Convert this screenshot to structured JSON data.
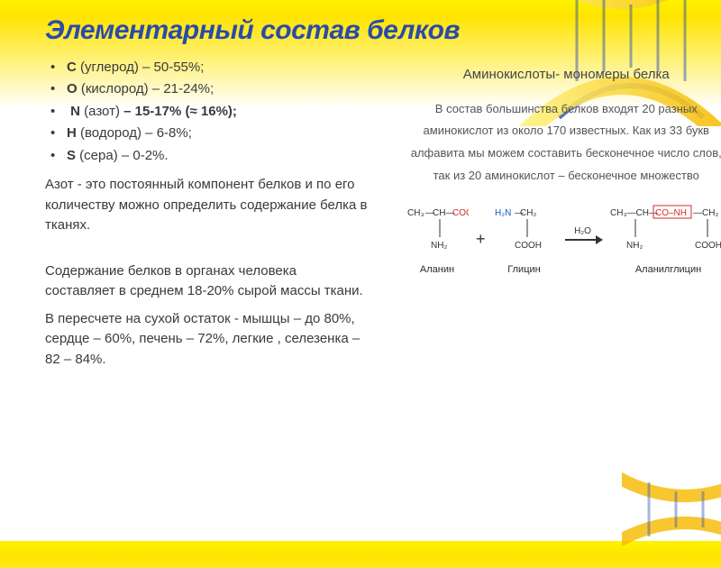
{
  "title": "Элементарный состав белков",
  "elements": [
    {
      "sym": "С",
      "name": "(углерод)",
      "range": "– 50-55%;"
    },
    {
      "sym": "О",
      "name": "(кислород)",
      "range": "– 21-24%;"
    },
    {
      "sym": "N",
      "name": "(азот)",
      "range": "– 15-17% (≈ 16%);",
      "bold_range": true,
      "lead_space": true
    },
    {
      "sym": "Н",
      "name": "(водород)",
      "range": "– 6-8%;"
    },
    {
      "sym": "S",
      "name": "(сера)",
      "range": "– 0-2%.",
      "dash_after_name": "– "
    }
  ],
  "para1": "Азот - это постоянный компонент белков и по его количеству можно определить содержание белка в тканях.",
  "para2": "Содержание белков в органах человека составляет в среднем 18-20% сырой массы ткани.",
  "para3": "В пересчете на сухой остаток - мышцы – до 80%, сердце – 60%, печень – 72%, легкие , селезенка – 82 – 84%.",
  "right_title": "Аминокислоты- мономеры белка",
  "right_body": "В состав большинства белков входят 20 разных аминокислот из около 170 известных. Как из 33 букв алфавита мы можем составить бесконечное число слов, так из 20 аминокислот – бесконечное множество",
  "reaction": {
    "mol1_label": "Аланин",
    "mol2_label": "Глицин",
    "mol3_label": "Аланилглицин",
    "plus": "+",
    "h2o": "H₂O",
    "highlight_box_color": "#d42a2a",
    "cooh_color": "#d42a2a",
    "nh_color": "#1a55c4",
    "text_color": "#333333"
  },
  "colors": {
    "title": "#2a4ba8",
    "accent_yellow": "#fef200",
    "dna_blue": "#2a4ba8",
    "body": "#3a3a3a"
  }
}
